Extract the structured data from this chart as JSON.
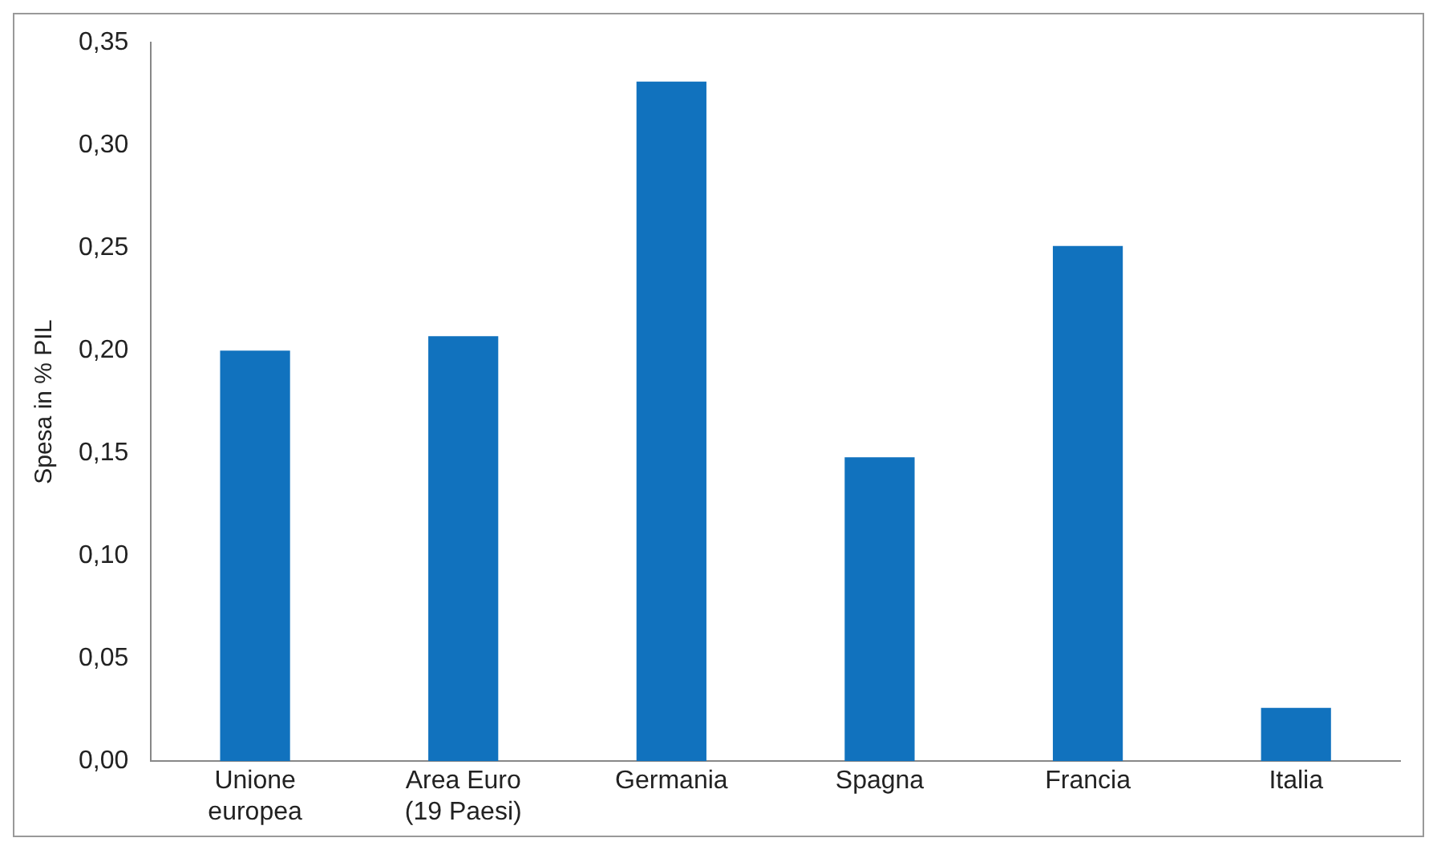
{
  "chart_data": {
    "type": "bar",
    "ylabel": "Spesa in % PIL",
    "categories": [
      "Unione europea",
      "Area Euro (19 Paesi)",
      "Germania",
      "Spagna",
      "Francia",
      "Italia"
    ],
    "values": [
      0.2,
      0.207,
      0.331,
      0.148,
      0.251,
      0.026
    ],
    "color": "#1172be",
    "ylim": [
      0,
      0.35
    ],
    "yticks": [
      {
        "value": 0,
        "label": "0,00"
      },
      {
        "value": 0.05,
        "label": "0,05"
      },
      {
        "value": 0.1,
        "label": "0,10"
      },
      {
        "value": 0.15,
        "label": "0,15"
      },
      {
        "value": 0.2,
        "label": "0,20"
      },
      {
        "value": 0.25,
        "label": "0,25"
      },
      {
        "value": 0.3,
        "label": "0,30"
      },
      {
        "value": 0.35,
        "label": "0,35"
      }
    ],
    "grid": false,
    "legend": false
  }
}
